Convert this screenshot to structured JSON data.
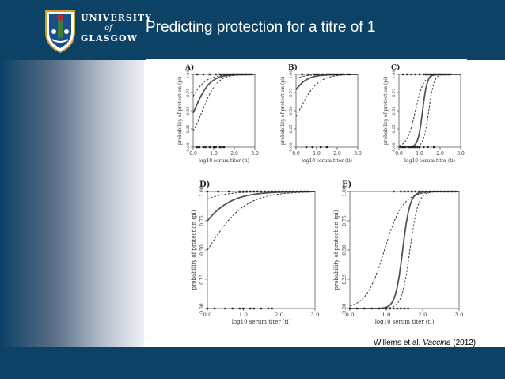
{
  "slide": {
    "title": "Predicting protection for a titre of 1"
  },
  "logo": {
    "line1": "UNIVERSITY",
    "line2": "of",
    "line3": "GLASGOW",
    "colors": {
      "crest_fill": "#ffffff",
      "crest_blue": "#1b4f8a",
      "crest_red": "#b8272d",
      "crest_green": "#3b7d3b"
    }
  },
  "citation": {
    "authors": "Willems et al.",
    "journal": "Vaccine",
    "year": "(2012)"
  },
  "colors": {
    "background": "#0b4266",
    "content": "#ffffff"
  },
  "chart_data": [
    {
      "panel_label": "A)",
      "type": "line",
      "xlabel": "log10 serum titer (ti)",
      "ylabel": "probability of protection (pi)",
      "xlim": [
        0,
        3
      ],
      "ylim": [
        0,
        1
      ],
      "x_ticks": [
        "0.0",
        "1.0",
        "2.0",
        "3.0"
      ],
      "y_ticks": [
        "0.00",
        "0.25",
        "0.50",
        "0.75",
        "1.00"
      ],
      "logistic": {
        "mid": [
          0.05,
          -0.35,
          0.45
        ],
        "slope": [
          2.6,
          2.4,
          2.8
        ]
      }
    },
    {
      "panel_label": "B)",
      "type": "line",
      "xlabel": "log10 serum titer (ti)",
      "ylabel": "probability of protection (pi)",
      "xlim": [
        0,
        3
      ],
      "ylim": [
        0,
        1
      ],
      "x_ticks": [
        "0.0",
        "1.0",
        "2.0",
        "3.0"
      ],
      "y_ticks": [
        "0.00",
        "0.25",
        "0.50",
        "0.75",
        "1.00"
      ],
      "logistic": {
        "mid": [
          -0.55,
          -1.3,
          0.15
        ],
        "slope": [
          2.4,
          2.2,
          2.2
        ]
      }
    },
    {
      "panel_label": "C)",
      "type": "line",
      "xlabel": "log10 serum titer (ti)",
      "ylabel": "probability of protection (pi)",
      "xlim": [
        0,
        3
      ],
      "ylim": [
        0,
        1
      ],
      "x_ticks": [
        "0.0",
        "1.0",
        "2.0",
        "3.0"
      ],
      "y_ticks": [
        "0.00",
        "0.25",
        "0.50",
        "0.75",
        "1.00"
      ],
      "logistic": {
        "mid": [
          1.15,
          0.8,
          1.45
        ],
        "slope": [
          9,
          5,
          8
        ]
      }
    },
    {
      "panel_label": "D)",
      "type": "line",
      "xlabel": "log10 serum titer (ti)",
      "ylabel": "probability of protection (pi)",
      "xlim": [
        0,
        3
      ],
      "ylim": [
        0,
        1
      ],
      "x_ticks": [
        "0.0",
        "1.0",
        "2.0",
        "3.0"
      ],
      "y_ticks": [
        "0.00",
        "0.25",
        "0.50",
        "0.75",
        "1.00"
      ],
      "logistic": {
        "mid": [
          -0.55,
          -1.2,
          0.0
        ],
        "slope": [
          2.0,
          2.2,
          1.9
        ]
      }
    },
    {
      "panel_label": "E)",
      "type": "line",
      "xlabel": "log10 serum titer (ti)",
      "ylabel": "probability of protection (pi)",
      "xlim": [
        0,
        3
      ],
      "ylim": [
        0,
        1
      ],
      "x_ticks": [
        "0.0",
        "1.0",
        "2.0",
        "3.0"
      ],
      "y_ticks": [
        "0.00",
        "0.25",
        "0.50",
        "0.75",
        "1.00"
      ],
      "logistic": {
        "mid": [
          1.45,
          0.95,
          1.65
        ],
        "slope": [
          10,
          4,
          9
        ]
      }
    }
  ]
}
